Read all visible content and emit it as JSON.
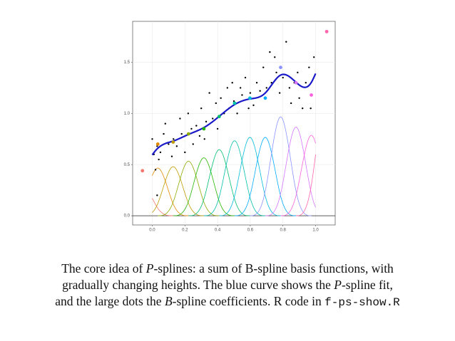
{
  "chart_data": {
    "type": "pspline",
    "xlim": [
      -0.12,
      1.12
    ],
    "ylim": [
      -0.09,
      1.9
    ],
    "xticks": [
      {
        "value": 0,
        "label": "0.0"
      },
      {
        "value": 0.2,
        "label": "0.2"
      },
      {
        "value": 0.4,
        "label": "0.4"
      },
      {
        "value": 0.6,
        "label": "0.6"
      },
      {
        "value": 0.8,
        "label": "0.8"
      },
      {
        "value": 1,
        "label": "1.0"
      }
    ],
    "yticks": [
      {
        "value": 0,
        "label": "0.0"
      },
      {
        "value": 0.5,
        "label": "0.5"
      },
      {
        "value": 1,
        "label": "1.0"
      },
      {
        "value": 1.5,
        "label": "1.5"
      }
    ],
    "grid": true,
    "hline": 0,
    "fit_color": "#1a1ac8",
    "coefficients": {
      "x": [
        -0.06,
        0.034,
        0.128,
        0.222,
        0.316,
        0.41,
        0.504,
        0.598,
        0.692,
        0.786,
        0.88,
        0.974,
        1.068
      ],
      "values": [
        0.44,
        0.7,
        0.72,
        0.8,
        0.85,
        0.97,
        1.1,
        1.15,
        1.15,
        1.45,
        1.3,
        1.18,
        1.8
      ],
      "colors": [
        "#F8766D",
        "#E18A00",
        "#BE9C00",
        "#8CAB00",
        "#24B700",
        "#00BE70",
        "#00C1AB",
        "#00BBDA",
        "#00ACFC",
        "#8B93FF",
        "#D575FE",
        "#F962DD",
        "#FF65AC"
      ]
    },
    "points": {
      "color": "#000000",
      "x": [
        0.0,
        0.01,
        0.02,
        0.03,
        0.04,
        0.05,
        0.07,
        0.08,
        0.1,
        0.12,
        0.13,
        0.15,
        0.17,
        0.18,
        0.2,
        0.22,
        0.24,
        0.25,
        0.27,
        0.29,
        0.3,
        0.32,
        0.33,
        0.35,
        0.37,
        0.39,
        0.4,
        0.42,
        0.44,
        0.46,
        0.47,
        0.49,
        0.5,
        0.52,
        0.54,
        0.55,
        0.57,
        0.59,
        0.6,
        0.62,
        0.64,
        0.66,
        0.68,
        0.7,
        0.72,
        0.73,
        0.75,
        0.76,
        0.78,
        0.8,
        0.82,
        0.84,
        0.85,
        0.87,
        0.89,
        0.9,
        0.92,
        0.94,
        0.96,
        0.97,
        0.99,
        0.03
      ],
      "values": [
        0.75,
        0.6,
        0.45,
        0.68,
        0.55,
        0.62,
        0.8,
        0.9,
        0.7,
        0.58,
        0.75,
        0.68,
        0.95,
        0.8,
        0.62,
        1.0,
        0.85,
        0.7,
        0.88,
        0.78,
        1.05,
        0.75,
        0.92,
        1.2,
        0.95,
        1.1,
        0.85,
        1.15,
        1.0,
        1.25,
        1.05,
        1.3,
        1.12,
        1.0,
        1.25,
        1.18,
        1.35,
        1.05,
        1.2,
        1.08,
        1.3,
        1.22,
        1.45,
        1.25,
        1.6,
        1.3,
        1.55,
        1.4,
        1.2,
        1.35,
        1.7,
        1.25,
        1.1,
        1.3,
        1.4,
        1.15,
        1.05,
        1.3,
        1.45,
        1.05,
        1.55,
        0.2
      ]
    }
  },
  "caption": {
    "lines": [
      [
        "The core idea of ",
        "P",
        "-splines: a sum of B-spline basis functions, with"
      ],
      [
        "gradually changing heights. The blue curve shows the ",
        "P",
        "-spline fit,"
      ],
      [
        "and the large dots the ",
        "B",
        "-spline coefficients. R code in ",
        "f-ps-show.R"
      ]
    ]
  }
}
